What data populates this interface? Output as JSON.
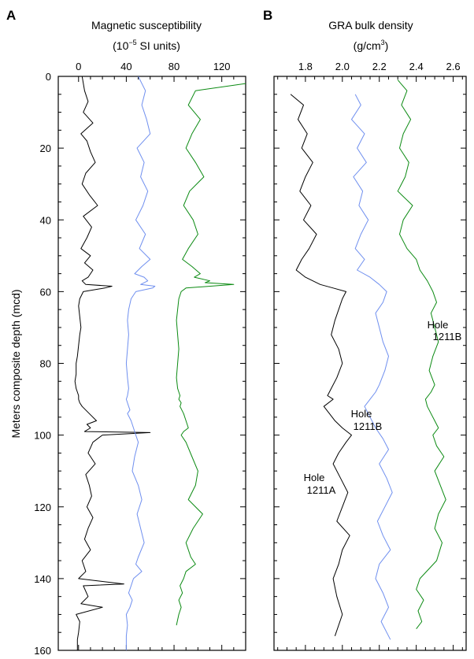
{
  "y_axis": {
    "label": "Meters composite depth (mcd)",
    "range": [
      0,
      160
    ],
    "ticks": [
      0,
      20,
      40,
      60,
      80,
      100,
      120,
      140,
      160
    ],
    "inverted": true
  },
  "panels": [
    {
      "letter": "A",
      "title_line1": "Magnetic susceptibility",
      "title_line2_pre": "(10",
      "title_line2_sup": "−5",
      "title_line2_post": " SI units)"
    },
    {
      "letter": "B",
      "title_line1": "GRA bulk density",
      "title_line2_pre": "(g/cm",
      "title_line2_sup": "3",
      "title_line2_post": ")"
    }
  ],
  "annotations": [
    {
      "id": "hole-1211b-green",
      "line1": "Hole",
      "line2": "1211B",
      "color": "#0b8a12"
    },
    {
      "id": "hole-1211b-blue",
      "line1": "Hole",
      "line2": "1211B",
      "color": "#6f8fef"
    },
    {
      "id": "hole-1211a-black",
      "line1": "Hole",
      "line2": "1211A",
      "color": "#000000"
    }
  ],
  "chart_data": [
    {
      "type": "line",
      "panel": "A",
      "title": "Magnetic susceptibility (10^-5 SI units)",
      "xlabel": "Magnetic susceptibility",
      "ylabel": "Meters composite depth (mcd)",
      "xlim": [
        -17,
        140
      ],
      "ylim": [
        160,
        0
      ],
      "x_ticks": [
        0,
        40,
        80,
        120
      ],
      "grid": false,
      "series": [
        {
          "color": "#000000",
          "x": [
            3,
            5,
            8,
            4,
            12,
            2,
            7,
            10,
            14,
            6,
            3,
            9,
            16,
            4,
            11,
            7,
            2,
            10,
            5,
            12,
            8,
            3,
            6,
            28,
            22,
            4,
            1,
            0,
            1,
            2,
            1,
            0,
            -1,
            -2,
            -2,
            -3,
            -2,
            -1,
            0,
            0,
            1,
            3,
            9,
            15,
            7,
            10,
            5,
            60,
            20,
            12,
            8,
            14,
            6,
            9,
            11,
            7,
            12,
            8,
            5,
            10,
            3,
            6,
            0,
            38,
            4,
            8,
            2,
            20,
            -2,
            1,
            0,
            -1,
            -1
          ],
          "y": [
            0,
            4,
            7,
            10,
            13,
            16,
            18,
            21,
            24,
            27,
            30,
            33,
            36,
            39,
            42,
            45,
            48,
            50,
            52,
            54,
            56,
            57,
            58,
            58.5,
            59,
            60,
            62,
            64,
            67,
            70,
            72,
            75,
            78,
            80,
            83,
            85,
            87,
            88,
            89,
            90,
            91,
            92,
            94,
            96,
            97,
            98,
            99,
            99.3,
            100,
            102,
            105,
            108,
            111,
            114,
            117,
            120,
            123,
            126,
            129,
            132,
            135,
            138,
            140,
            141.5,
            142,
            145,
            147,
            148,
            150,
            152,
            155,
            157,
            160
          ]
        },
        {
          "color": "#6f8fef",
          "x": [
            50,
            56,
            53,
            57,
            60,
            49,
            55,
            52,
            58,
            54,
            48,
            56,
            51,
            60,
            53,
            47,
            55,
            58,
            52,
            64,
            62,
            48,
            44,
            42,
            41,
            42,
            41,
            40,
            41,
            42,
            41,
            40,
            41,
            42,
            43,
            41,
            44,
            46,
            48,
            50,
            47,
            45,
            50,
            53,
            49,
            52,
            55,
            50,
            48,
            53,
            46,
            44,
            42,
            45,
            43,
            40,
            41,
            40,
            40
          ],
          "y": [
            0,
            4,
            8,
            12,
            16,
            20,
            24,
            28,
            32,
            36,
            40,
            44,
            48,
            51,
            53,
            55,
            56,
            57,
            58,
            58.5,
            59,
            60,
            62,
            65,
            68,
            72,
            76,
            80,
            84,
            87,
            89,
            90,
            91,
            92,
            93,
            94,
            96,
            98,
            100,
            102,
            106,
            110,
            114,
            118,
            122,
            126,
            130,
            134,
            136,
            138,
            140,
            142,
            144,
            146,
            148,
            150,
            153,
            156,
            160
          ]
        },
        {
          "color": "#0b8a12",
          "x": [
            140,
            98,
            92,
            102,
            95,
            90,
            98,
            105,
            93,
            88,
            96,
            100,
            92,
            87,
            95,
            102,
            97,
            110,
            106,
            130,
            90,
            86,
            84,
            83,
            82,
            83,
            84,
            83,
            82,
            83,
            85,
            84,
            86,
            85,
            88,
            90,
            92,
            88,
            86,
            90,
            95,
            100,
            98,
            92,
            104,
            96,
            90,
            94,
            98,
            90,
            88,
            85,
            87,
            84,
            86,
            84,
            82
          ],
          "y": [
            2,
            4,
            8,
            12,
            16,
            20,
            24,
            28,
            32,
            36,
            40,
            44,
            48,
            51,
            53,
            55,
            56,
            57,
            57.5,
            58,
            59,
            60,
            62,
            65,
            68,
            72,
            76,
            80,
            84,
            87,
            89,
            90,
            91,
            92,
            94,
            96,
            98,
            99,
            100,
            102,
            106,
            110,
            114,
            118,
            122,
            126,
            130,
            134,
            136,
            138,
            140,
            142,
            144,
            146,
            148,
            150,
            153
          ]
        }
      ]
    },
    {
      "type": "line",
      "panel": "B",
      "title": "GRA bulk density (g/cm^3)",
      "xlabel": "GRA bulk density",
      "ylabel": "Meters composite depth (mcd)",
      "xlim": [
        1.63,
        2.67
      ],
      "ylim": [
        160,
        0
      ],
      "x_ticks": [
        1.8,
        2.0,
        2.2,
        2.4,
        2.6
      ],
      "grid": false,
      "series": [
        {
          "color": "#000000",
          "x": [
            1.72,
            1.79,
            1.76,
            1.81,
            1.78,
            1.84,
            1.8,
            1.77,
            1.83,
            1.79,
            1.86,
            1.82,
            1.78,
            1.75,
            1.8,
            1.88,
            1.95,
            2.02,
            2.0,
            1.98,
            1.96,
            1.94,
            1.98,
            2.0,
            1.97,
            1.94,
            1.92,
            1.95,
            1.9,
            1.93,
            1.96,
            2.0,
            2.05,
            2.02,
            1.98,
            1.95,
            1.99,
            2.03,
            2.0,
            1.97,
            2.04,
            2.0,
            1.98,
            1.95,
            1.97,
            2.0,
            1.96
          ],
          "y": [
            5,
            8,
            12,
            16,
            20,
            24,
            28,
            32,
            36,
            40,
            44,
            48,
            51,
            54,
            56,
            58,
            59,
            60,
            62,
            65,
            68,
            72,
            76,
            80,
            84,
            87,
            89,
            90,
            92,
            94,
            96,
            98,
            100,
            102,
            105,
            108,
            112,
            116,
            120,
            124,
            128,
            132,
            136,
            140,
            145,
            150,
            156
          ]
        },
        {
          "color": "#6f8fef",
          "x": [
            2.07,
            2.1,
            2.05,
            2.12,
            2.08,
            2.13,
            2.06,
            2.11,
            2.09,
            2.14,
            2.1,
            2.07,
            2.12,
            2.08,
            2.15,
            2.2,
            2.24,
            2.22,
            2.18,
            2.2,
            2.22,
            2.25,
            2.23,
            2.2,
            2.18,
            2.15,
            2.12,
            2.15,
            2.18,
            2.22,
            2.25,
            2.2,
            2.24,
            2.27,
            2.23,
            2.19,
            2.22,
            2.26,
            2.2,
            2.18,
            2.22,
            2.25,
            2.21,
            2.24,
            2.26
          ],
          "y": [
            5,
            8,
            12,
            16,
            20,
            24,
            28,
            32,
            36,
            40,
            44,
            48,
            51,
            54,
            56,
            58,
            60,
            63,
            66,
            70,
            74,
            78,
            82,
            86,
            88,
            90,
            92,
            95,
            98,
            101,
            104,
            108,
            112,
            116,
            120,
            124,
            128,
            132,
            136,
            140,
            144,
            148,
            152,
            155,
            157
          ]
        },
        {
          "color": "#0b8a12",
          "x": [
            2.3,
            2.35,
            2.32,
            2.37,
            2.33,
            2.31,
            2.36,
            2.34,
            2.3,
            2.38,
            2.33,
            2.31,
            2.35,
            2.4,
            2.42,
            2.46,
            2.49,
            2.51,
            2.48,
            2.5,
            2.52,
            2.49,
            2.47,
            2.5,
            2.48,
            2.45,
            2.46,
            2.48,
            2.5,
            2.52,
            2.49,
            2.51,
            2.55,
            2.5,
            2.53,
            2.56,
            2.52,
            2.5,
            2.54,
            2.51,
            2.42,
            2.4,
            2.44,
            2.41,
            2.43,
            2.4
          ],
          "y": [
            1,
            4,
            8,
            12,
            16,
            20,
            24,
            28,
            32,
            36,
            40,
            44,
            48,
            51,
            54,
            57,
            60,
            63,
            66,
            70,
            74,
            78,
            82,
            86,
            88,
            90,
            92,
            94,
            96,
            98,
            100,
            103,
            106,
            110,
            114,
            118,
            122,
            126,
            130,
            135,
            140,
            143,
            146,
            149,
            152,
            154
          ]
        }
      ]
    }
  ]
}
